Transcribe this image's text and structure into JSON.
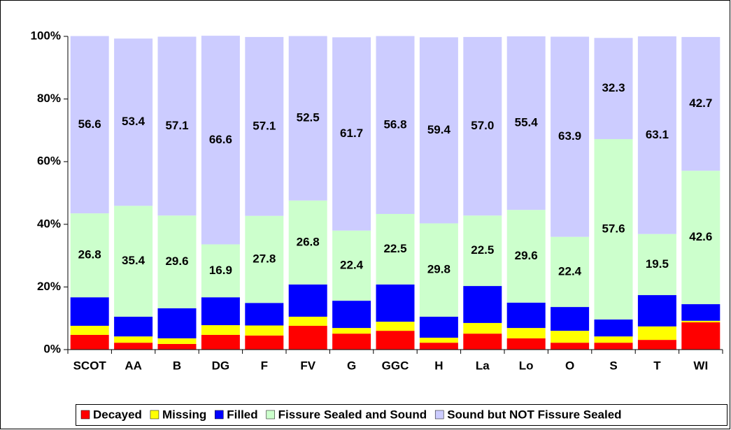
{
  "chart_data": {
    "type": "stacked-bar-100",
    "categories": [
      "SCOT",
      "AA",
      "B",
      "DG",
      "F",
      "FV",
      "G",
      "GGC",
      "H",
      "La",
      "Lo",
      "O",
      "S",
      "T",
      "WI"
    ],
    "ylim": [
      0,
      100
    ],
    "yticks": [
      {
        "value": 0,
        "label": "0%"
      },
      {
        "value": 20,
        "label": "20%"
      },
      {
        "value": 40,
        "label": "40%"
      },
      {
        "value": 60,
        "label": "60%"
      },
      {
        "value": 80,
        "label": "80%"
      },
      {
        "value": 100,
        "label": "100%"
      }
    ],
    "series": [
      {
        "name": "Decayed",
        "color": "#ff0000",
        "values": [
          4.7,
          2.2,
          1.8,
          4.7,
          4.5,
          7.6,
          5.1,
          6.0,
          2.2,
          5.1,
          3.6,
          2.2,
          2.2,
          3.1,
          8.7
        ]
      },
      {
        "name": "Missing",
        "color": "#ffff00",
        "values": [
          2.9,
          2.0,
          1.8,
          3.1,
          3.2,
          2.9,
          1.8,
          2.9,
          1.6,
          3.4,
          3.3,
          3.8,
          2.0,
          4.3,
          0.5
        ]
      },
      {
        "name": "Filled",
        "color": "#0000ff",
        "values": [
          9.1,
          6.3,
          9.6,
          8.9,
          7.2,
          10.3,
          8.7,
          11.9,
          6.7,
          11.8,
          8.1,
          7.6,
          5.4,
          10.0,
          5.3
        ]
      },
      {
        "name": "Fissure Sealed and Sound",
        "color": "#ccffcc",
        "values": [
          26.8,
          35.4,
          29.6,
          16.9,
          27.8,
          26.8,
          22.4,
          22.5,
          29.8,
          22.5,
          29.6,
          22.4,
          57.6,
          19.5,
          42.6
        ],
        "value_labels": [
          "26.8",
          "35.4",
          "29.6",
          "16.9",
          "27.8",
          "26.8",
          "22.4",
          "22.5",
          "29.8",
          "22.5",
          "29.6",
          "22.4",
          "57.6",
          "19.5",
          "42.6"
        ]
      },
      {
        "name": "Sound but NOT Fissure Sealed",
        "color": "#ccccff",
        "values": [
          56.6,
          53.4,
          57.1,
          66.6,
          57.1,
          52.5,
          61.7,
          56.8,
          59.4,
          57.0,
          55.4,
          63.9,
          32.3,
          63.1,
          42.7
        ],
        "value_labels": [
          "56.6",
          "53.4",
          "57.1",
          "66.6",
          "57.1",
          "52.5",
          "61.7",
          "56.8",
          "59.4",
          "57.0",
          "55.4",
          "63.9",
          "32.3",
          "63.1",
          "42.7"
        ]
      }
    ]
  }
}
